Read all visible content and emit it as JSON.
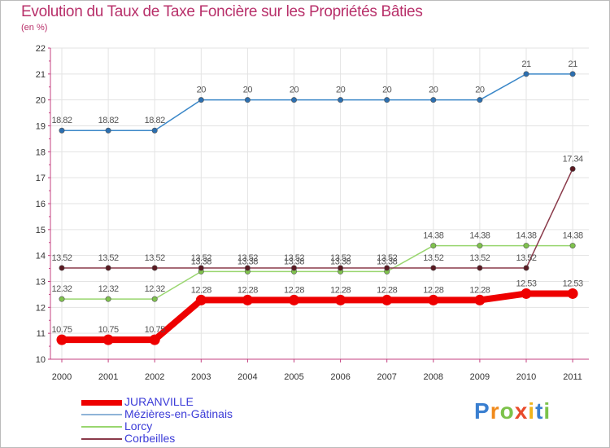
{
  "title": "Evolution du Taux de Taxe Foncière sur les Propriétés Bâties",
  "unit": "(en %)",
  "chart_data": {
    "type": "line",
    "title": "Evolution du Taux de Taxe Foncière sur les Propriétés Bâties",
    "ylabel": "(en %)",
    "xlabel": "",
    "ylim": [
      10,
      22
    ],
    "yticks": [
      10,
      11,
      12,
      13,
      14,
      15,
      16,
      17,
      18,
      19,
      20,
      21,
      22
    ],
    "categories": [
      "2000",
      "2001",
      "2002",
      "2003",
      "2004",
      "2005",
      "2006",
      "2007",
      "2008",
      "2009",
      "2010",
      "2011"
    ],
    "grid": true,
    "legend": "bottom-left",
    "series": [
      {
        "name": "Mézières-en-Gâtinais",
        "color": "#3a87c8",
        "marker": "#2c6fb0",
        "values": [
          18.82,
          18.82,
          18.82,
          20,
          20,
          20,
          20,
          20,
          20,
          20,
          21,
          21
        ],
        "labels": [
          "18.82",
          "18.82",
          "18.82",
          "20",
          "20",
          "20",
          "20",
          "20",
          "20",
          "20",
          "21",
          "21"
        ]
      },
      {
        "name": "Lorcy",
        "color": "#99d66f",
        "marker": "#7fc24d",
        "values": [
          12.32,
          12.32,
          12.32,
          13.38,
          13.38,
          13.38,
          13.38,
          13.38,
          14.38,
          14.38,
          14.38,
          14.38
        ],
        "labels": [
          "12.32",
          "12.32",
          "12.32",
          "13.38",
          "13.38",
          "13.38",
          "13.38",
          "13.38",
          "14.38",
          "14.38",
          "14.38",
          "14.38"
        ]
      },
      {
        "name": "Corbeilles",
        "color": "#8a3a4a",
        "marker": "#5a1a22",
        "values": [
          13.52,
          13.52,
          13.52,
          13.52,
          13.52,
          13.52,
          13.52,
          13.52,
          13.52,
          13.52,
          13.52,
          17.34
        ],
        "labels": [
          "13.52",
          "13.52",
          "13.52",
          "13.52",
          "13.52",
          "13.52",
          "13.52",
          "13.52",
          "13.52",
          "13.52",
          "13.52",
          "17.34"
        ]
      },
      {
        "name": "JURANVILLE",
        "color": "#ee0000",
        "marker": "#ee0000",
        "values": [
          10.75,
          10.75,
          10.75,
          12.28,
          12.28,
          12.28,
          12.28,
          12.28,
          12.28,
          12.28,
          12.53,
          12.53
        ],
        "labels": [
          "10.75",
          "10.75",
          "10.75",
          "12.28",
          "12.28",
          "12.28",
          "12.28",
          "12.28",
          "12.28",
          "12.28",
          "12.53",
          "12.53"
        ]
      }
    ]
  },
  "legend": [
    {
      "name": "JURANVILLE",
      "color": "#ee0000"
    },
    {
      "name": "Mézières-en-Gâtinais",
      "color": "#8fb4d8"
    },
    {
      "name": "Lorcy",
      "color": "#99d66f"
    },
    {
      "name": "Corbeilles",
      "color": "#8a3a4a"
    }
  ],
  "logo": {
    "letters": [
      "P",
      "r",
      "o",
      "x",
      "i",
      "t",
      "i"
    ],
    "colors": [
      "#3a7fd0",
      "#f08a1c",
      "#7cc24a",
      "#e84a2a",
      "#f0b41c",
      "#3a7fd0",
      "#7cc24a"
    ]
  }
}
